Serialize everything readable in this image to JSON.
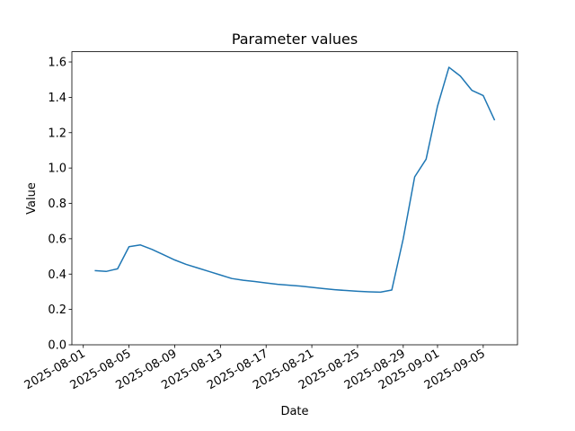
{
  "chart_data": {
    "type": "line",
    "title": "Parameter values",
    "xlabel": "Date",
    "ylabel": "Value",
    "x": [
      "2025-08-02",
      "2025-08-03",
      "2025-08-04",
      "2025-08-05",
      "2025-08-06",
      "2025-08-07",
      "2025-08-08",
      "2025-08-09",
      "2025-08-10",
      "2025-08-11",
      "2025-08-12",
      "2025-08-13",
      "2025-08-14",
      "2025-08-15",
      "2025-08-16",
      "2025-08-17",
      "2025-08-18",
      "2025-08-19",
      "2025-08-20",
      "2025-08-21",
      "2025-08-22",
      "2025-08-23",
      "2025-08-24",
      "2025-08-25",
      "2025-08-26",
      "2025-08-27",
      "2025-08-28",
      "2025-08-29",
      "2025-08-30",
      "2025-08-31",
      "2025-09-01",
      "2025-09-02",
      "2025-09-03",
      "2025-09-04",
      "2025-09-05",
      "2025-09-06"
    ],
    "series": [
      {
        "name": "Value",
        "color": "#1f77b4",
        "values": [
          0.42,
          0.415,
          0.43,
          0.555,
          0.565,
          0.54,
          0.51,
          0.48,
          0.455,
          0.435,
          0.415,
          0.395,
          0.375,
          0.365,
          0.358,
          0.35,
          0.342,
          0.337,
          0.332,
          0.325,
          0.318,
          0.312,
          0.307,
          0.303,
          0.3,
          0.298,
          0.31,
          0.6,
          0.95,
          1.05,
          1.35,
          1.57,
          1.52,
          1.44,
          1.41,
          1.27
        ]
      }
    ],
    "xlim": [
      "2025-07-31",
      "2025-09-08"
    ],
    "xticks": [
      "2025-08-01",
      "2025-08-05",
      "2025-08-09",
      "2025-08-13",
      "2025-08-17",
      "2025-08-21",
      "2025-08-25",
      "2025-08-29",
      "2025-09-01",
      "2025-09-05"
    ],
    "ylim": [
      0,
      1.658
    ],
    "yticks": [
      {
        "value": 0,
        "label": "0.0"
      },
      0.2,
      0.4,
      0.6,
      0.8,
      {
        "value": 1,
        "label": "1.0"
      },
      1.2,
      1.4,
      1.6
    ],
    "grid": false
  }
}
